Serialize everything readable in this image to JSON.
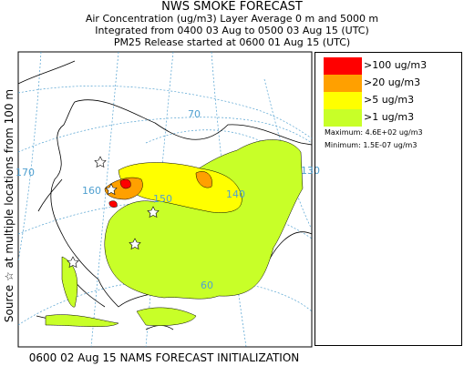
{
  "title": "NWS SMOKE FORECAST",
  "line2": "Air Concentration (ug/m3) Layer Average    0 m and  5000 m",
  "line3": "Integrated from 0400 03 Aug to 0500 03 Aug 15 (UTC)",
  "line4": "PM25 Release started at 0600 01 Aug 15 (UTC)",
  "side_label": "Source ☆ at multiple locations   from   100 m",
  "footer": "0600 02 Aug 15 NAMS FORECAST INITIALIZATION",
  "legend": {
    "items": [
      {
        "label": ">100 ug/m3",
        "color": "#ff0000"
      },
      {
        "label": ">20 ug/m3",
        "color": "#ffa000"
      },
      {
        "label": ">5 ug/m3",
        "color": "#ffff00"
      },
      {
        "label": ">1 ug/m3",
        "color": "#c8ff28"
      }
    ],
    "maximum": "Maximum: 4.6E+02 ug/m3",
    "minimum": "Minimum: 1.5E-07 ug/m3"
  },
  "map": {
    "grid_labels": [
      "170",
      "160",
      "150",
      "70",
      "60",
      "140",
      "130"
    ],
    "colors": {
      "land_outline": "#000000",
      "grid": "#50a0d0",
      "contour_low": "#c8ff28",
      "contour_mid": "#ffff00",
      "contour_high": "#ffa000",
      "contour_max": "#ff0000"
    }
  }
}
